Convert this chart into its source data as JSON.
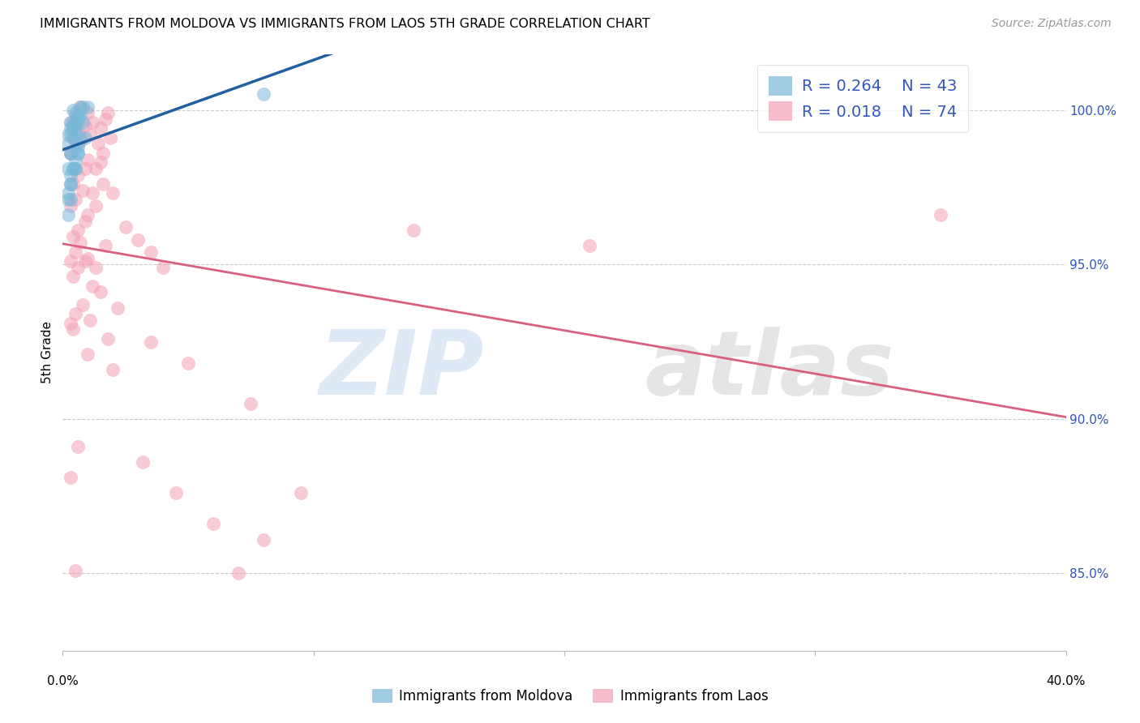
{
  "title": "IMMIGRANTS FROM MOLDOVA VS IMMIGRANTS FROM LAOS 5TH GRADE CORRELATION CHART",
  "source": "Source: ZipAtlas.com",
  "ylabel": "5th Grade",
  "yticks": [
    85.0,
    90.0,
    95.0,
    100.0
  ],
  "ytick_labels": [
    "85.0%",
    "90.0%",
    "95.0%",
    "100.0%"
  ],
  "xlim": [
    0.0,
    40.0
  ],
  "ylim": [
    82.5,
    101.8
  ],
  "moldova_color": "#7ab8d9",
  "laos_color": "#f4a0b5",
  "moldova_line_color": "#2060a0",
  "laos_line_color": "#d96080",
  "moldova_x": [
    0.4,
    0.3,
    0.5,
    0.7,
    0.2,
    0.3,
    0.4,
    0.6,
    0.5,
    0.6,
    0.8,
    0.3,
    0.4,
    0.5,
    0.2,
    0.3,
    0.4,
    0.7,
    0.6,
    0.5,
    0.2,
    0.3,
    0.6,
    0.8,
    0.3,
    0.4,
    0.6,
    0.9,
    0.2,
    0.5,
    0.6,
    0.3,
    0.2,
    0.5,
    0.3,
    0.4,
    0.7,
    0.6,
    0.5,
    1.0,
    0.2,
    0.3,
    8.0
  ],
  "moldova_y": [
    100.0,
    99.6,
    99.9,
    100.1,
    99.2,
    99.4,
    99.6,
    99.8,
    99.6,
    99.8,
    100.1,
    98.6,
    99.1,
    99.5,
    98.9,
    99.2,
    99.4,
    99.8,
    99.6,
    99.3,
    98.1,
    98.6,
    98.9,
    99.6,
    97.6,
    98.1,
    98.6,
    99.1,
    97.1,
    98.4,
    98.8,
    97.9,
    97.3,
    98.1,
    97.6,
    98.1,
    99.1,
    98.6,
    98.1,
    100.1,
    96.6,
    97.1,
    100.5
  ],
  "laos_x": [
    0.3,
    0.5,
    0.7,
    1.0,
    1.2,
    1.5,
    1.8,
    0.4,
    0.6,
    0.9,
    1.1,
    1.4,
    1.7,
    0.3,
    0.5,
    0.7,
    1.0,
    1.3,
    1.6,
    0.4,
    0.6,
    0.9,
    1.2,
    1.5,
    1.9,
    0.3,
    0.5,
    0.8,
    1.0,
    1.3,
    1.6,
    0.4,
    0.6,
    0.9,
    2.0,
    2.5,
    3.0,
    3.5,
    4.0,
    0.3,
    0.5,
    0.7,
    1.0,
    1.3,
    1.7,
    0.4,
    0.6,
    0.9,
    1.2,
    1.5,
    2.2,
    3.5,
    5.0,
    7.5,
    0.3,
    0.5,
    0.8,
    1.1,
    1.8,
    0.4,
    1.0,
    2.0,
    3.2,
    4.5,
    6.0,
    7.0,
    8.0,
    9.5,
    14.0,
    0.6,
    21.0,
    0.3,
    0.5,
    35.0
  ],
  "laos_y": [
    99.6,
    99.8,
    100.1,
    99.9,
    99.6,
    99.4,
    99.9,
    99.1,
    99.3,
    99.5,
    99.2,
    98.9,
    99.7,
    98.6,
    98.8,
    99.0,
    98.4,
    98.1,
    98.6,
    97.6,
    97.9,
    98.1,
    97.3,
    98.3,
    99.1,
    96.9,
    97.1,
    97.4,
    96.6,
    96.9,
    97.6,
    95.9,
    96.1,
    96.4,
    97.3,
    96.2,
    95.8,
    95.4,
    94.9,
    95.1,
    95.4,
    95.7,
    95.2,
    94.9,
    95.6,
    94.6,
    94.9,
    95.1,
    94.3,
    94.1,
    93.6,
    92.5,
    91.8,
    90.5,
    93.1,
    93.4,
    93.7,
    93.2,
    92.6,
    92.9,
    92.1,
    91.6,
    88.6,
    87.6,
    86.6,
    85.0,
    86.1,
    87.6,
    96.1,
    89.1,
    95.6,
    88.1,
    85.1,
    96.6
  ],
  "legend_moldova_R": "0.264",
  "legend_moldova_N": "43",
  "legend_laos_R": "0.018",
  "legend_laos_N": "74"
}
